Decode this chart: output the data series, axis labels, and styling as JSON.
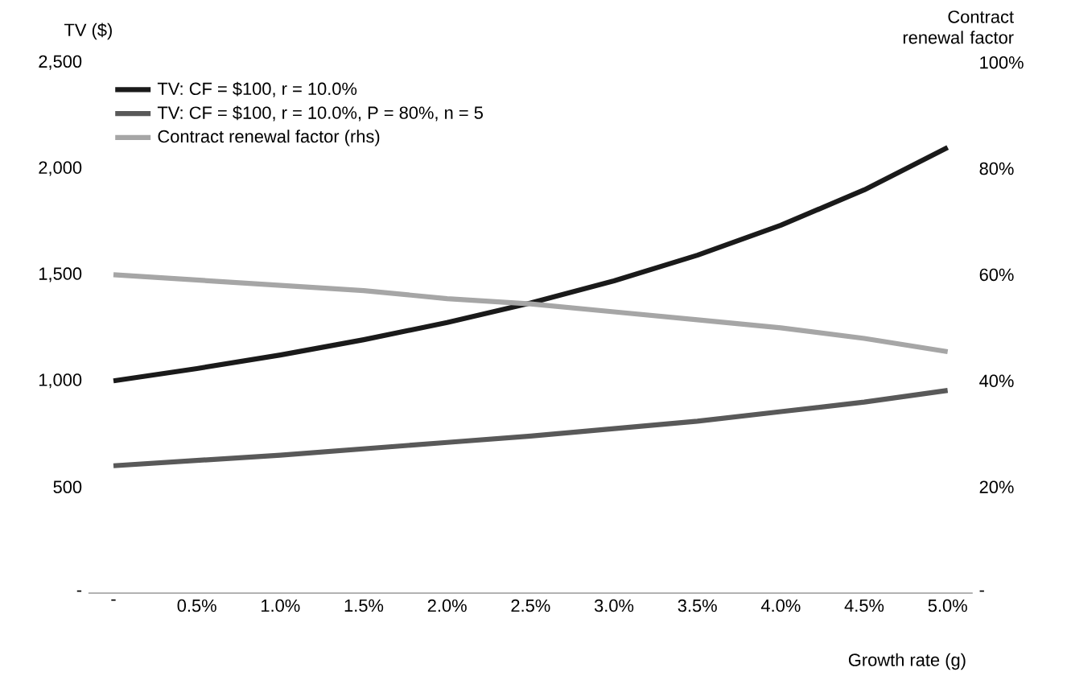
{
  "chart_data": {
    "type": "line",
    "xlabel": "Growth rate (g)",
    "ylabel": "TV ($)",
    "y2label": "Contract renewal factor",
    "categories": [
      "-",
      "0.5%",
      "1.0%",
      "1.5%",
      "2.0%",
      "2.5%",
      "3.0%",
      "3.5%",
      "4.0%",
      "4.5%",
      "5.0%"
    ],
    "series": [
      {
        "name": "TV: CF = $100, r = 10.0%",
        "color": "#1a1a1a",
        "values": [
          1000,
          1058,
          1122,
          1194,
          1275,
          1367,
          1471,
          1592,
          1733,
          1900,
          2100
        ]
      },
      {
        "name": "TV: CF = $100, r = 10.0%, P = 80%, n = 5",
        "color": "#595959",
        "values": [
          600,
          625,
          650,
          680,
          710,
          740,
          775,
          810,
          855,
          900,
          955
        ]
      },
      {
        "name": "Contract renewal factor (rhs)",
        "color": "#a6a6a6",
        "axis": "y2",
        "values": [
          60,
          59,
          58,
          57,
          55.5,
          54.5,
          53,
          51.5,
          50,
          48,
          45.5
        ]
      }
    ],
    "ylim": [
      0,
      2500
    ],
    "yticks": [
      {
        "value": 0,
        "label": "-"
      },
      500,
      {
        "value": 1000,
        "label": "1,000"
      },
      {
        "value": 1500,
        "label": "1,500"
      },
      {
        "value": 2000,
        "label": "2,000"
      },
      {
        "value": 2500,
        "label": "2,500"
      }
    ],
    "y2lim": [
      0,
      100
    ],
    "y2ticks": [
      {
        "value": 0,
        "label": "-"
      },
      {
        "value": 20,
        "label": "20%"
      },
      {
        "value": 40,
        "label": "40%"
      },
      {
        "value": 60,
        "label": "60%"
      },
      {
        "value": 80,
        "label": "80%"
      },
      {
        "value": 100,
        "label": "100%"
      }
    ],
    "legend": "top left",
    "line_style": "solid"
  }
}
